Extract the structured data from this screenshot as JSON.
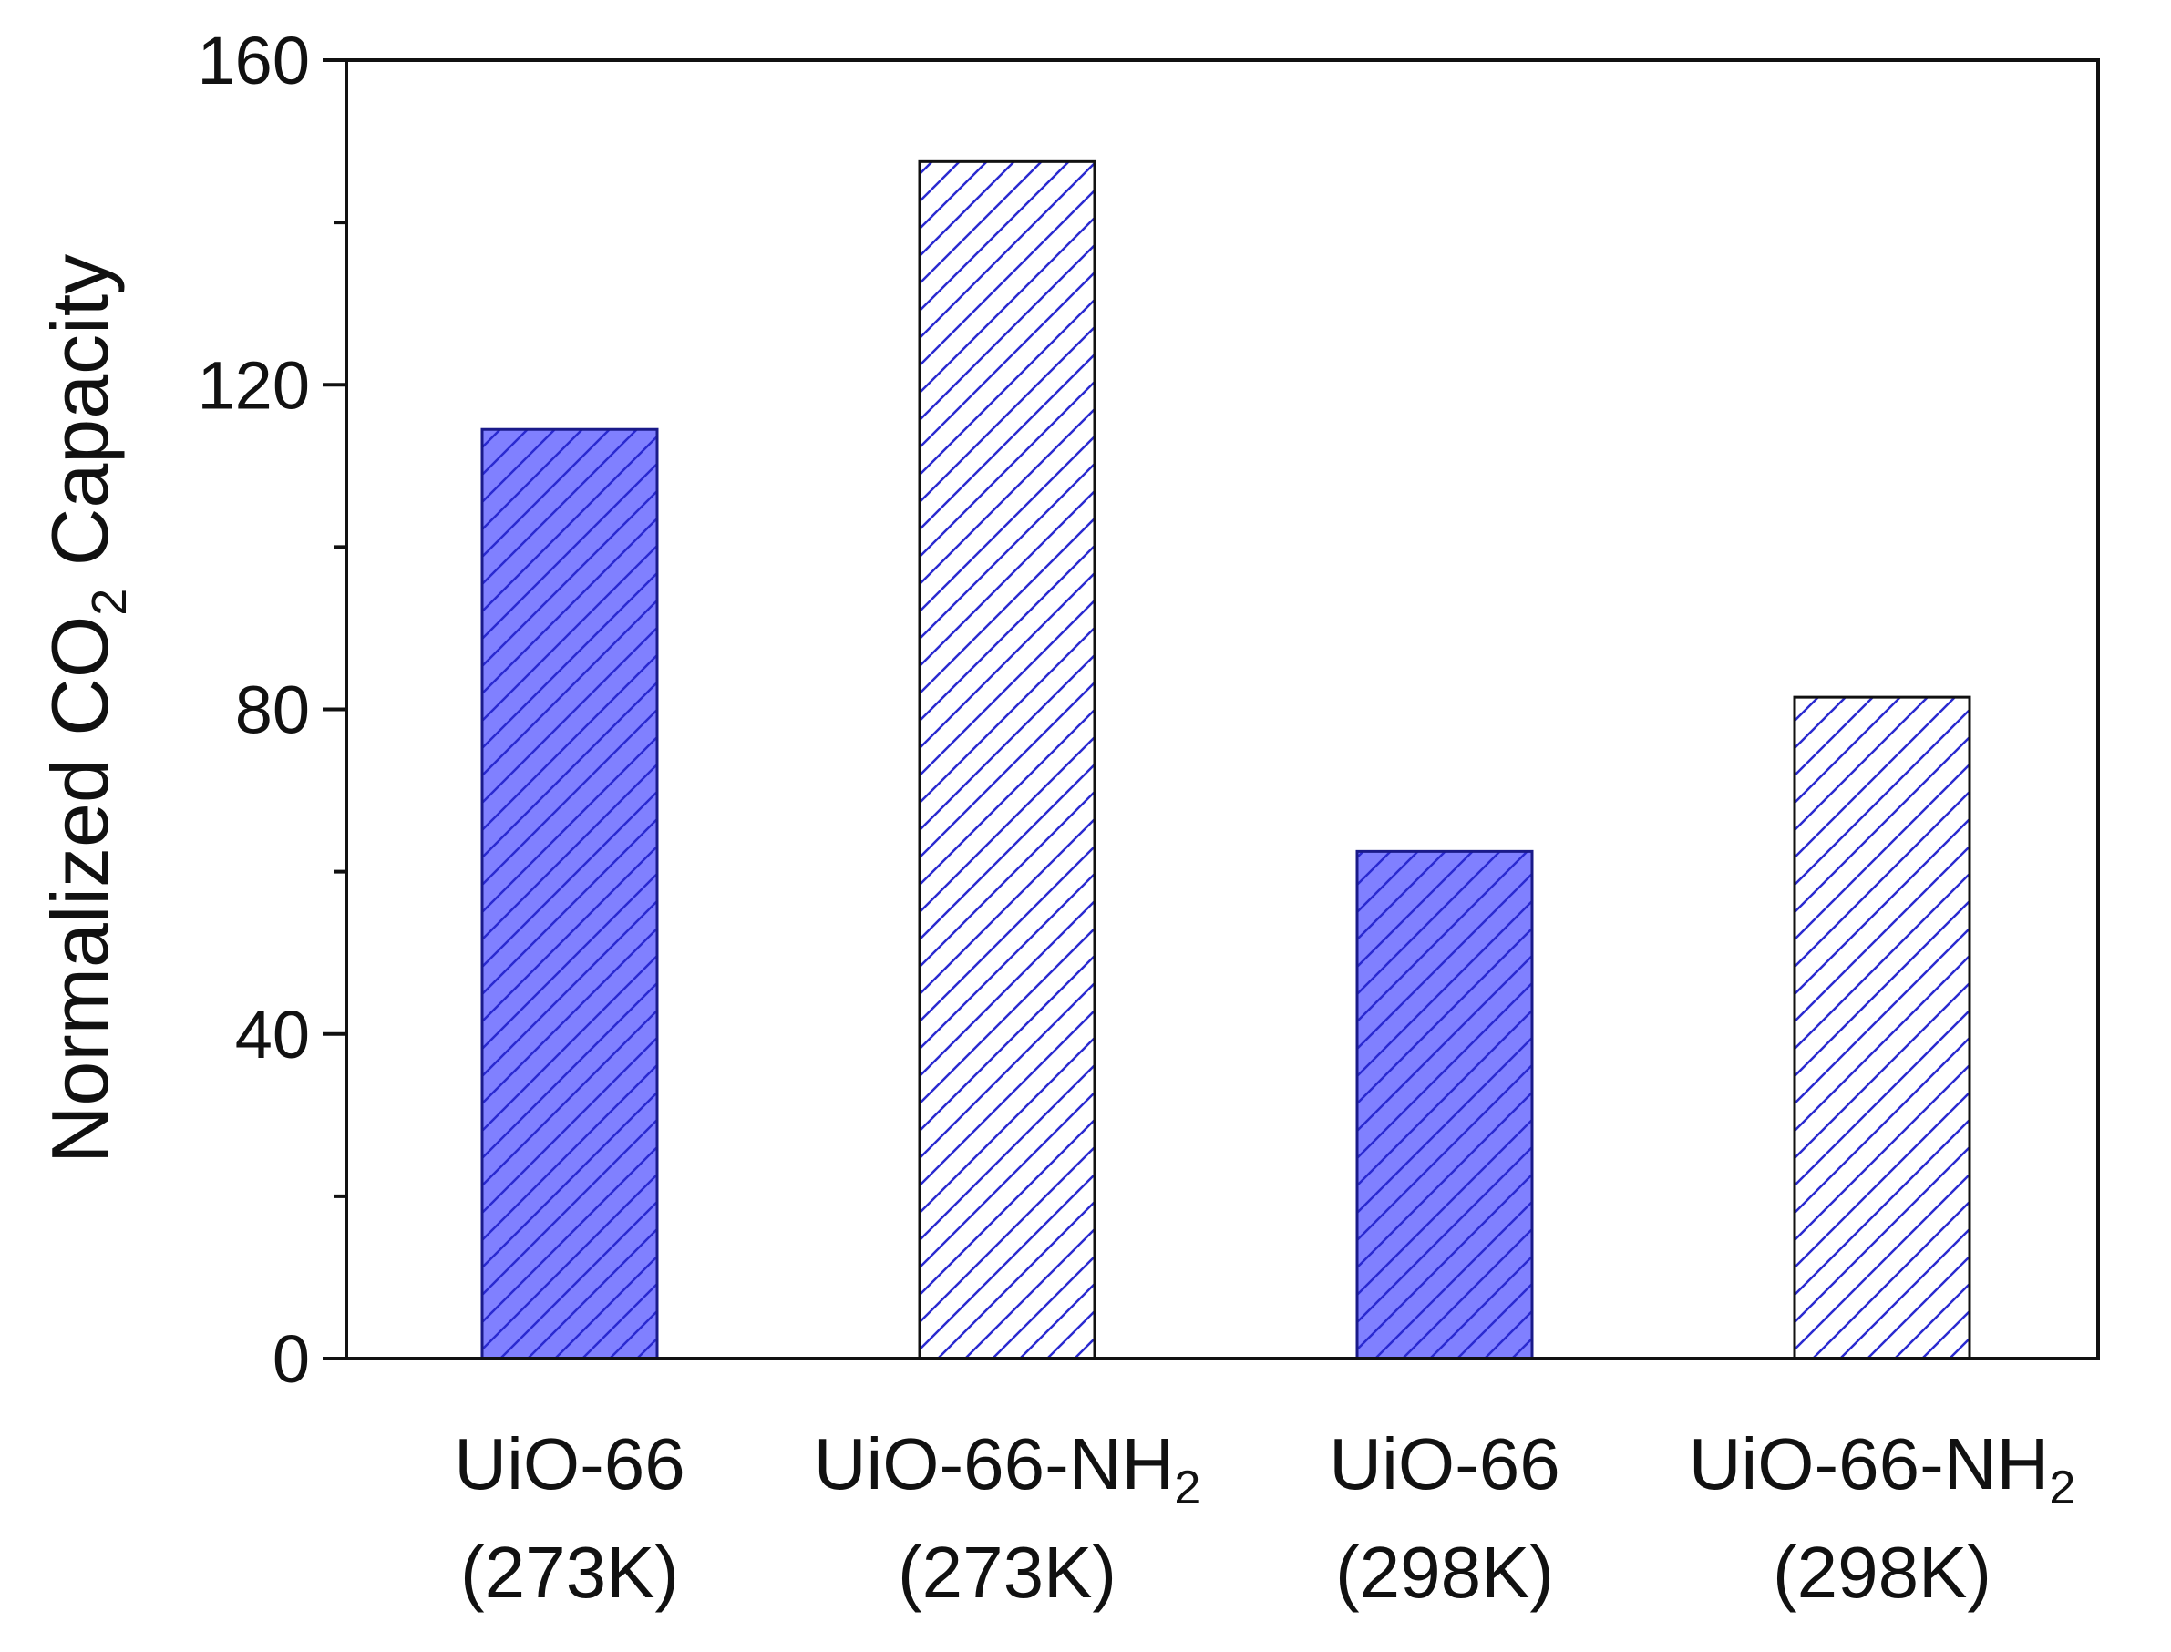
{
  "chart_data": {
    "type": "bar",
    "ylabel": "Normalized CO2 Capacity",
    "ylabel_parts": {
      "before": "Normalized CO",
      "sub": "2",
      "after": " Capacity"
    },
    "ylim": [
      0,
      160
    ],
    "yticks": [
      0,
      40,
      80,
      120,
      160
    ],
    "ytick_labels": [
      "0",
      "40",
      "80",
      "120",
      "160"
    ],
    "grid": false,
    "categories": [
      {
        "label": "UiO-66 (273K)",
        "line1": "UiO-66",
        "line1_sub": "",
        "line2": "(273K)"
      },
      {
        "label": "UiO-66-NH2 (273K)",
        "line1": "UiO-66-NH",
        "line1_sub": "2",
        "line2": "(273K)"
      },
      {
        "label": "UiO-66 (298K)",
        "line1": "UiO-66",
        "line1_sub": "",
        "line2": "(298K)"
      },
      {
        "label": "UiO-66-NH2 (298K)",
        "line1": "UiO-66-NH",
        "line1_sub": "2",
        "line2": "(298K)"
      }
    ],
    "values": [
      114.5,
      147.5,
      62.5,
      81.5
    ],
    "bar_styles": [
      "filled-hatched",
      "white-hatched",
      "filled-hatched",
      "white-hatched"
    ],
    "colors": {
      "fill": "#8080ff",
      "hatch": "#2a2ad0",
      "border": "#1a1a8a",
      "axis": "#111111"
    }
  }
}
